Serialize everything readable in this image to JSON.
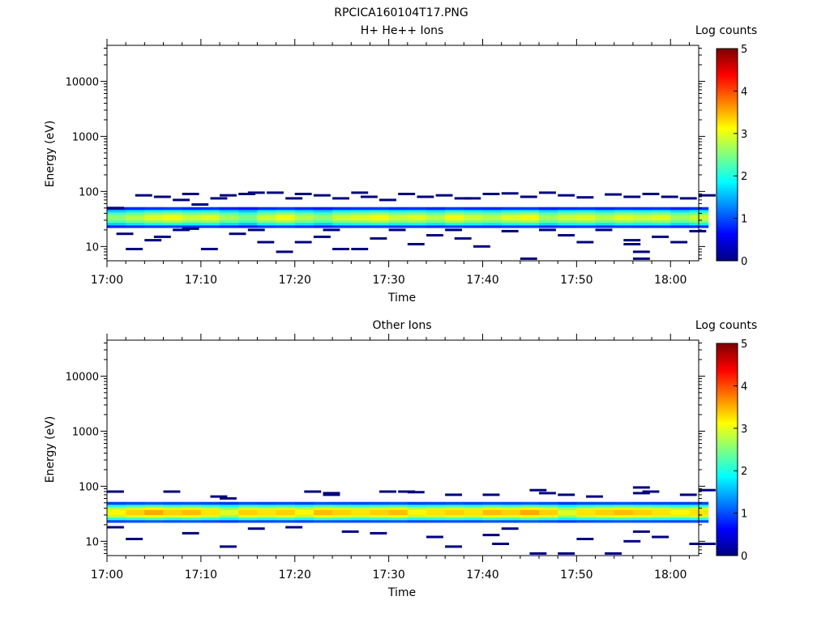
{
  "figure_title": "RPCICA160104T17.PNG",
  "chart_data": [
    {
      "type": "heatmap",
      "title": "H+ He++ Ions",
      "xlabel": "Time",
      "ylabel": "Energy (eV)",
      "x_ticks": [
        "17:00",
        "17:10",
        "17:20",
        "17:30",
        "17:40",
        "17:50",
        "18:00"
      ],
      "y_ticks": [
        "10",
        "100",
        "1000",
        "10000"
      ],
      "y_scale": "log",
      "ylim": [
        5.5,
        45000
      ],
      "xlim": [
        "17:00",
        "18:03"
      ],
      "colorbar": {
        "label": "Log counts",
        "ticks": [
          "0",
          "1",
          "2",
          "3",
          "4",
          "5"
        ],
        "range": [
          0,
          5
        ],
        "colormap": "jet"
      },
      "band": {
        "energy_range_eV": [
          22,
          52
        ],
        "core_energy_eV": [
          26,
          42
        ],
        "peak_log_counts": 3.2,
        "cells": [
          [
            "17:00",
            2.6
          ],
          [
            "17:02",
            2.8
          ],
          [
            "17:04",
            3.0
          ],
          [
            "17:06",
            3.1
          ],
          [
            "17:08",
            2.9
          ],
          [
            "17:10",
            3.0
          ],
          [
            "17:12",
            2.7
          ],
          [
            "17:14",
            2.5
          ],
          [
            "17:16",
            2.9
          ],
          [
            "17:18",
            3.1
          ],
          [
            "17:20",
            2.8
          ],
          [
            "17:22",
            2.6
          ],
          [
            "17:24",
            2.9
          ],
          [
            "17:26",
            3.0
          ],
          [
            "17:28",
            3.1
          ],
          [
            "17:30",
            2.9
          ],
          [
            "17:32",
            3.0
          ],
          [
            "17:34",
            2.8
          ],
          [
            "17:36",
            3.1
          ],
          [
            "17:38",
            2.9
          ],
          [
            "17:40",
            2.8
          ],
          [
            "17:42",
            3.0
          ],
          [
            "17:44",
            3.1
          ],
          [
            "17:46",
            2.7
          ],
          [
            "17:48",
            2.9
          ],
          [
            "17:50",
            3.0
          ],
          [
            "17:52",
            2.8
          ],
          [
            "17:54",
            3.0
          ],
          [
            "17:56",
            2.9
          ],
          [
            "17:58",
            3.0
          ],
          [
            "18:00",
            2.7
          ],
          [
            "18:02",
            2.9
          ]
        ]
      },
      "sporadic_counts": [
        [
          "17:00",
          50
        ],
        [
          "17:03",
          85
        ],
        [
          "17:05",
          80
        ],
        [
          "17:07",
          70
        ],
        [
          "17:08",
          90
        ],
        [
          "17:09",
          58
        ],
        [
          "17:11",
          75
        ],
        [
          "17:12",
          85
        ],
        [
          "17:14",
          90
        ],
        [
          "17:15",
          95
        ],
        [
          "17:17",
          95
        ],
        [
          "17:19",
          75
        ],
        [
          "17:20",
          90
        ],
        [
          "17:22",
          85
        ],
        [
          "17:24",
          75
        ],
        [
          "17:26",
          95
        ],
        [
          "17:27",
          80
        ],
        [
          "17:29",
          70
        ],
        [
          "17:31",
          90
        ],
        [
          "17:33",
          80
        ],
        [
          "17:35",
          85
        ],
        [
          "17:37",
          75
        ],
        [
          "17:38",
          75
        ],
        [
          "17:40",
          90
        ],
        [
          "17:42",
          92
        ],
        [
          "17:44",
          80
        ],
        [
          "17:46",
          95
        ],
        [
          "17:48",
          85
        ],
        [
          "17:50",
          78
        ],
        [
          "17:53",
          88
        ],
        [
          "17:55",
          80
        ],
        [
          "17:57",
          90
        ],
        [
          "17:59",
          80
        ],
        [
          "18:01",
          75
        ],
        [
          "18:03",
          85
        ],
        [
          "17:01",
          17
        ],
        [
          "17:02",
          9
        ],
        [
          "17:04",
          13
        ],
        [
          "17:05",
          15
        ],
        [
          "17:07",
          20
        ],
        [
          "17:08",
          21
        ],
        [
          "17:10",
          9
        ],
        [
          "17:13",
          17
        ],
        [
          "17:15",
          20
        ],
        [
          "17:16",
          12
        ],
        [
          "17:18",
          8
        ],
        [
          "17:20",
          12
        ],
        [
          "17:22",
          15
        ],
        [
          "17:23",
          20
        ],
        [
          "17:24",
          9
        ],
        [
          "17:26",
          9
        ],
        [
          "17:28",
          14
        ],
        [
          "17:30",
          20
        ],
        [
          "17:32",
          11
        ],
        [
          "17:34",
          16
        ],
        [
          "17:36",
          20
        ],
        [
          "17:37",
          14
        ],
        [
          "17:39",
          10
        ],
        [
          "17:42",
          19
        ],
        [
          "17:44",
          6
        ],
        [
          "17:46",
          20
        ],
        [
          "17:48",
          16
        ],
        [
          "17:50",
          12
        ],
        [
          "17:52",
          20
        ],
        [
          "17:55",
          13
        ],
        [
          "17:56",
          8
        ],
        [
          "17:58",
          15
        ],
        [
          "18:00",
          12
        ],
        [
          "18:02",
          19
        ],
        [
          "17:55",
          11
        ],
        [
          "17:56",
          6
        ]
      ]
    },
    {
      "type": "heatmap",
      "title": "Other Ions",
      "xlabel": "Time",
      "ylabel": "Energy (eV)",
      "x_ticks": [
        "17:00",
        "17:10",
        "17:20",
        "17:30",
        "17:40",
        "17:50",
        "18:00"
      ],
      "y_ticks": [
        "10",
        "100",
        "1000",
        "10000"
      ],
      "y_scale": "log",
      "ylim": [
        5.5,
        45000
      ],
      "xlim": [
        "17:00",
        "18:03"
      ],
      "colorbar": {
        "label": "Log counts",
        "ticks": [
          "0",
          "1",
          "2",
          "3",
          "4",
          "5"
        ],
        "range": [
          0,
          5
        ],
        "colormap": "jet"
      },
      "band": {
        "energy_range_eV": [
          22,
          52
        ],
        "core_energy_eV": [
          26,
          42
        ],
        "peak_log_counts": 3.6,
        "cells": [
          [
            "17:00",
            3.2
          ],
          [
            "17:02",
            3.4
          ],
          [
            "17:04",
            3.6
          ],
          [
            "17:06",
            3.4
          ],
          [
            "17:08",
            3.5
          ],
          [
            "17:10",
            3.3
          ],
          [
            "17:12",
            3.0
          ],
          [
            "17:14",
            3.4
          ],
          [
            "17:16",
            3.3
          ],
          [
            "17:18",
            3.4
          ],
          [
            "17:20",
            3.2
          ],
          [
            "17:22",
            3.5
          ],
          [
            "17:24",
            3.4
          ],
          [
            "17:26",
            3.3
          ],
          [
            "17:28",
            3.4
          ],
          [
            "17:30",
            3.5
          ],
          [
            "17:32",
            3.2
          ],
          [
            "17:34",
            3.3
          ],
          [
            "17:36",
            3.4
          ],
          [
            "17:38",
            3.3
          ],
          [
            "17:40",
            3.5
          ],
          [
            "17:42",
            3.4
          ],
          [
            "17:44",
            3.6
          ],
          [
            "17:46",
            3.4
          ],
          [
            "17:48",
            3.0
          ],
          [
            "17:50",
            3.3
          ],
          [
            "17:52",
            3.4
          ],
          [
            "17:54",
            3.5
          ],
          [
            "17:56",
            3.4
          ],
          [
            "17:58",
            3.3
          ],
          [
            "18:00",
            3.2
          ],
          [
            "18:02",
            3.3
          ]
        ]
      },
      "sporadic_counts": [
        [
          "17:00",
          80
        ],
        [
          "17:06",
          80
        ],
        [
          "17:11",
          65
        ],
        [
          "17:12",
          60
        ],
        [
          "17:21",
          80
        ],
        [
          "17:23",
          75
        ],
        [
          "17:23",
          70
        ],
        [
          "17:29",
          80
        ],
        [
          "17:31",
          80
        ],
        [
          "17:32",
          78
        ],
        [
          "17:36",
          70
        ],
        [
          "17:40",
          70
        ],
        [
          "17:45",
          85
        ],
        [
          "17:46",
          75
        ],
        [
          "17:48",
          70
        ],
        [
          "17:51",
          65
        ],
        [
          "17:56",
          75
        ],
        [
          "17:56",
          95
        ],
        [
          "17:57",
          80
        ],
        [
          "18:03",
          85
        ],
        [
          "18:01",
          70
        ],
        [
          "17:00",
          18
        ],
        [
          "17:02",
          11
        ],
        [
          "17:08",
          14
        ],
        [
          "17:12",
          8
        ],
        [
          "17:15",
          17
        ],
        [
          "17:19",
          18
        ],
        [
          "17:25",
          15
        ],
        [
          "17:28",
          14
        ],
        [
          "17:34",
          12
        ],
        [
          "17:36",
          8
        ],
        [
          "17:40",
          13
        ],
        [
          "17:41",
          9
        ],
        [
          "17:42",
          17
        ],
        [
          "17:45",
          6
        ],
        [
          "17:48",
          6
        ],
        [
          "17:50",
          11
        ],
        [
          "17:53",
          6
        ],
        [
          "17:55",
          10
        ],
        [
          "17:56",
          15
        ],
        [
          "17:58",
          12
        ],
        [
          "18:02",
          9
        ],
        [
          "18:03",
          9
        ]
      ]
    }
  ]
}
